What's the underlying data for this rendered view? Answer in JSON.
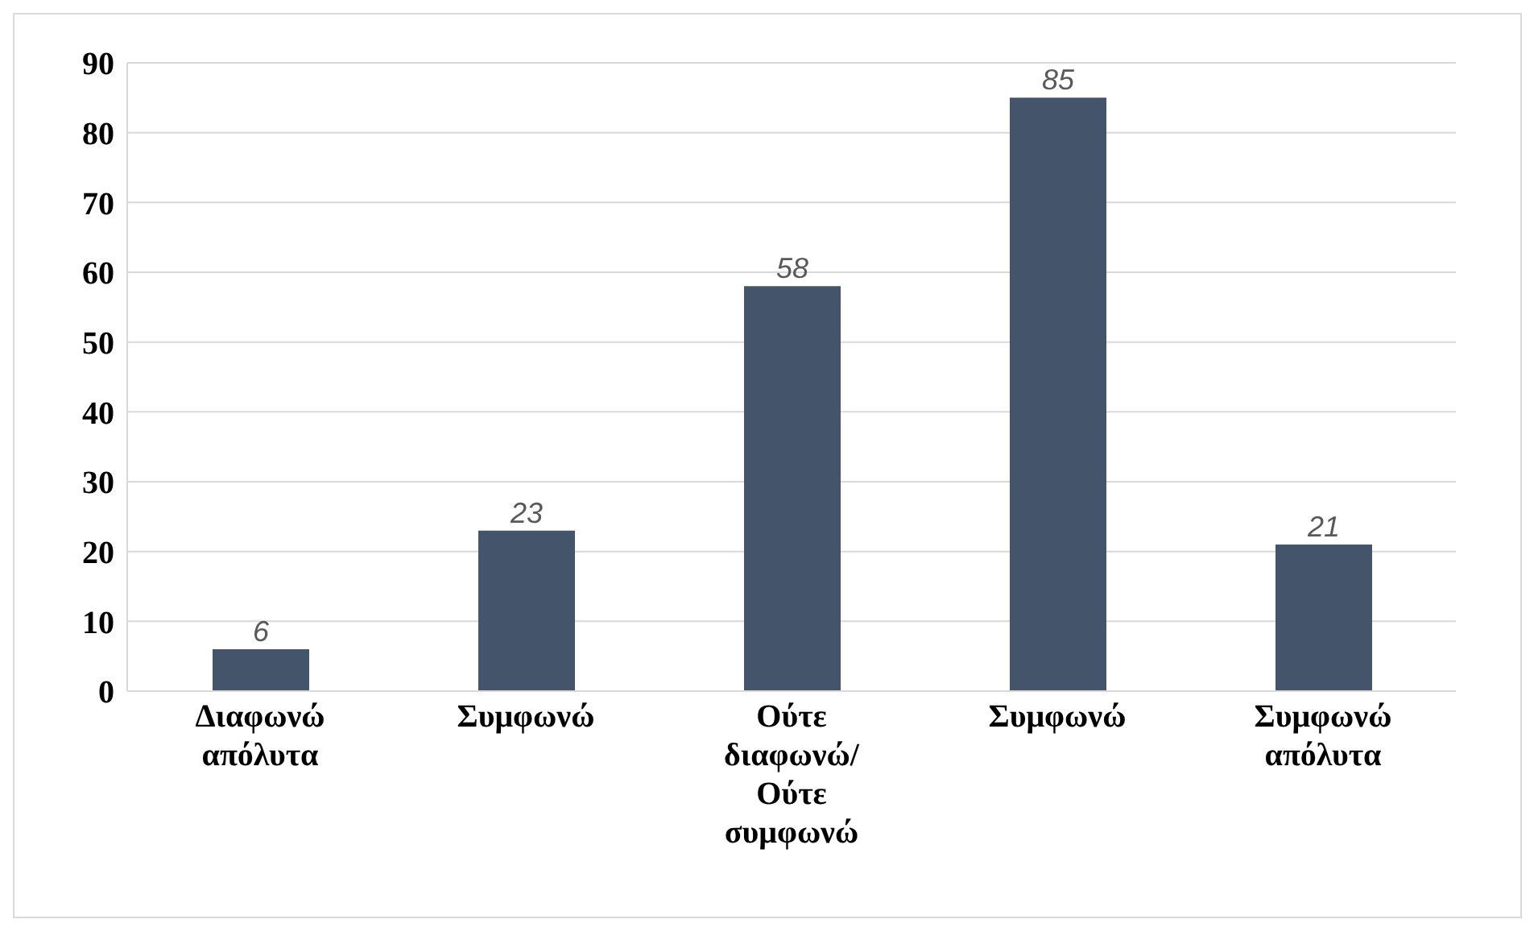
{
  "chart_data": {
    "type": "bar",
    "categories": [
      "Διαφωνώ απόλυτα",
      "Συμφωνώ",
      "Ούτε διαφωνώ/ Ούτε συμφωνώ",
      "Συμφωνώ",
      "Συμφωνώ απόλυτα"
    ],
    "values": [
      6,
      23,
      58,
      85,
      21
    ],
    "color": "#44546a",
    "ylim": [
      0,
      90
    ],
    "yticks": [
      0,
      10,
      20,
      30,
      40,
      50,
      60,
      70,
      80,
      90
    ],
    "grid": "y",
    "data_labels": true
  }
}
